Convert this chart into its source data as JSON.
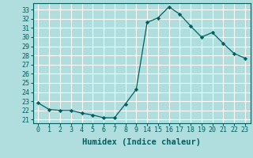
{
  "x_indices": [
    0,
    1,
    2,
    3,
    4,
    5,
    6,
    7,
    8,
    9,
    10,
    11,
    12,
    13,
    14,
    15,
    16,
    17,
    18,
    19
  ],
  "x_labels": [
    "0",
    "1",
    "2",
    "3",
    "4",
    "5",
    "6",
    "7",
    "8",
    "9",
    "14",
    "15",
    "16",
    "17",
    "18",
    "19",
    "20",
    "21",
    "22",
    "23"
  ],
  "y": [
    22.8,
    22.1,
    22.0,
    22.0,
    21.7,
    21.5,
    21.2,
    21.2,
    22.7,
    24.3,
    31.6,
    32.1,
    33.3,
    32.5,
    31.2,
    30.0,
    30.5,
    29.3,
    28.2,
    27.7
  ],
  "yticks": [
    21,
    22,
    23,
    24,
    25,
    26,
    27,
    28,
    29,
    30,
    31,
    32,
    33
  ],
  "ylim": [
    20.6,
    33.7
  ],
  "xlim": [
    -0.5,
    19.5
  ],
  "xlabel": "Humidex (Indice chaleur)",
  "line_color": "#006060",
  "marker_color": "#006060",
  "bg_color": "#b0dede",
  "grid_color": "#ffffff",
  "tick_color": "#006060",
  "label_fontsize": 6.0,
  "xlabel_fontsize": 7.5
}
